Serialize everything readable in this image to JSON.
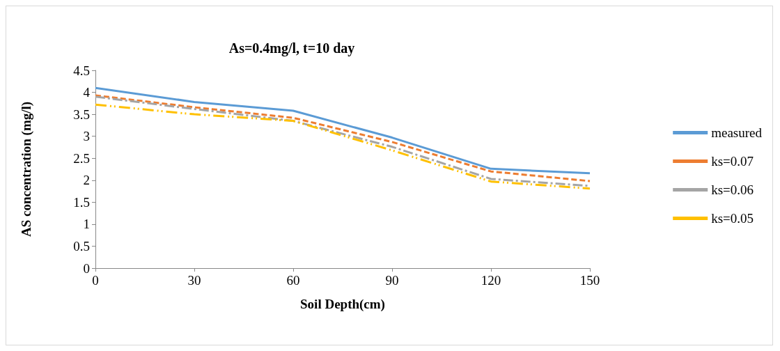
{
  "chart_data": {
    "type": "line",
    "title": "As=0.4mg/l, t=10 day",
    "xlabel": "Soil Depth(cm)",
    "ylabel": "AS concentration (mg/l)",
    "categories": [
      "0",
      "30",
      "60",
      "90",
      "120",
      "150"
    ],
    "series": [
      {
        "name": "measured",
        "color": "#5b9bd5",
        "line_style": "solid",
        "values": [
          4.1,
          3.78,
          3.58,
          2.97,
          2.26,
          2.16
        ]
      },
      {
        "name": "ks=0.07",
        "color": "#ed7d31",
        "line_style": "dashed",
        "values": [
          3.93,
          3.66,
          3.42,
          2.87,
          2.2,
          1.98
        ]
      },
      {
        "name": "ks=0.06",
        "color": "#a5a5a5",
        "line_style": "dashed",
        "values": [
          3.9,
          3.62,
          3.35,
          2.76,
          2.03,
          1.87
        ]
      },
      {
        "name": "ks=0.05",
        "color": "#ffc000",
        "line_style": "dashed",
        "values": [
          3.72,
          3.5,
          3.35,
          2.68,
          1.97,
          1.81
        ]
      }
    ],
    "ylim": [
      0,
      4.5
    ],
    "yticks": [
      0,
      0.5,
      1,
      1.5,
      2,
      2.5,
      3,
      3.5,
      4,
      4.5
    ],
    "grid": false,
    "legend": "right",
    "marker": "none"
  }
}
